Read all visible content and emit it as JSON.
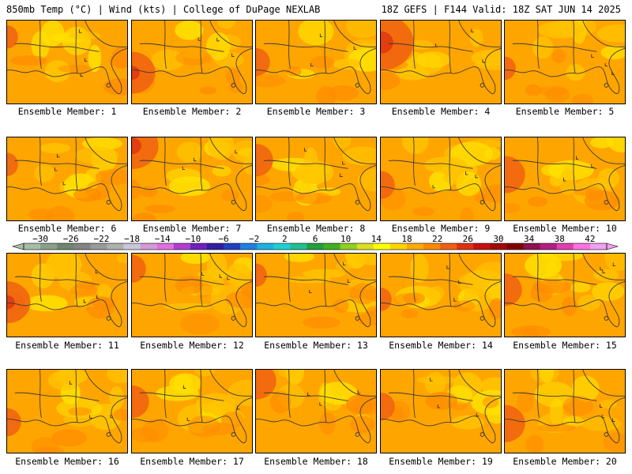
{
  "header": {
    "left": "850mb Temp (°C) | Wind (kts) | College of DuPage NEXLAB",
    "right": "18Z GEFS | F144 Valid: 18Z SAT JUN 14 2025"
  },
  "member_prefix": "Ensemble Member: ",
  "members": [
    {
      "id": "1",
      "label": "Ensemble Member: 1",
      "hot": 0.1,
      "cool": 0.3
    },
    {
      "id": "2",
      "label": "Ensemble Member: 2",
      "hot": 0.5,
      "cool": 0.3
    },
    {
      "id": "3",
      "label": "Ensemble Member: 3",
      "hot": 0.2,
      "cool": 0.2
    },
    {
      "id": "4",
      "label": "Ensemble Member: 4",
      "hot": 0.8,
      "cool": 0.4
    },
    {
      "id": "5",
      "label": "Ensemble Member: 5",
      "hot": 0.1,
      "cool": 0.4
    },
    {
      "id": "6",
      "label": "Ensemble Member: 6",
      "hot": 0.1,
      "cool": 0.4
    },
    {
      "id": "7",
      "label": "Ensemble Member: 7",
      "hot": 0.6,
      "cool": 0.5
    },
    {
      "id": "8",
      "label": "Ensemble Member: 8",
      "hot": 0.3,
      "cool": 0.7
    },
    {
      "id": "9",
      "label": "Ensemble Member: 9",
      "hot": 0.2,
      "cool": 0.6
    },
    {
      "id": "10",
      "label": "Ensemble Member: 10",
      "hot": 0.4,
      "cool": 0.4
    },
    {
      "id": "11",
      "label": "Ensemble Member: 11",
      "hot": 0.5,
      "cool": 0.3
    },
    {
      "id": "12",
      "label": "Ensemble Member: 12",
      "hot": 0.2,
      "cool": 0.5
    },
    {
      "id": "13",
      "label": "Ensemble Member: 13",
      "hot": 0.1,
      "cool": 0.4
    },
    {
      "id": "14",
      "label": "Ensemble Member: 14",
      "hot": 0.1,
      "cool": 0.6
    },
    {
      "id": "15",
      "label": "Ensemble Member: 15",
      "hot": 0.3,
      "cool": 0.6
    },
    {
      "id": "16",
      "label": "Ensemble Member: 16",
      "hot": 0.2,
      "cool": 0.4
    },
    {
      "id": "17",
      "label": "Ensemble Member: 17",
      "hot": 0.3,
      "cool": 0.7
    },
    {
      "id": "18",
      "label": "Ensemble Member: 18",
      "hot": 0.4,
      "cool": 0.4
    },
    {
      "id": "19",
      "label": "Ensemble Member: 19",
      "hot": 0.2,
      "cool": 0.4
    },
    {
      "id": "20",
      "label": "Ensemble Member: 20",
      "hot": 0.4,
      "cool": 0.5
    }
  ],
  "colorbar": {
    "units": "°C",
    "labels": [
      "−30",
      "−26",
      "−22",
      "−18",
      "−14",
      "−10",
      "−6",
      "−2",
      "2",
      "6",
      "10",
      "14",
      "18",
      "22",
      "26",
      "30",
      "34",
      "38",
      "42"
    ],
    "colors": [
      "#a8bda8",
      "#8aa08a",
      "#6f856f",
      "#848484",
      "#9a9a9a",
      "#b0b0b0",
      "#c8c8d8",
      "#d49ad8",
      "#e070e0",
      "#b040d0",
      "#7020c0",
      "#3020a0",
      "#2040c0",
      "#2080e0",
      "#20b0e0",
      "#20d0d0",
      "#20c090",
      "#20a040",
      "#40b020",
      "#90d020",
      "#d8e020",
      "#ffff00",
      "#ffd400",
      "#ffaa00",
      "#ff8800",
      "#f06010",
      "#e03010",
      "#c81010",
      "#a00808",
      "#800000",
      "#901050",
      "#b02080",
      "#e040b0",
      "#ff70e0",
      "#f0a0f0"
    ]
  },
  "field_colors": {
    "base": "#ffa500",
    "cool": "#ffc400",
    "pale": "#ffe000",
    "warm": "#ff8c00",
    "hot": "#f06010",
    "hotter": "#e03a10",
    "outline": "#3a3a3a"
  }
}
